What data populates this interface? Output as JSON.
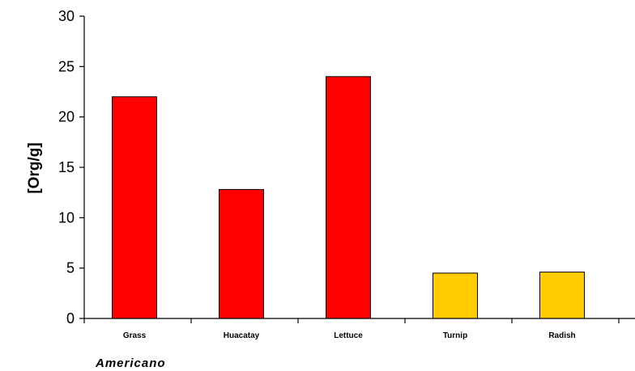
{
  "chart_data": {
    "type": "bar",
    "categories": [
      "Grass",
      "Huacatay",
      "Lettuce",
      "Turnip",
      "Radish"
    ],
    "values": [
      22,
      12.8,
      24,
      4.5,
      4.6
    ],
    "colors": [
      "#ff0000",
      "#ff0000",
      "#ff0000",
      "#ffcc00",
      "#ffcc00"
    ],
    "ylabel": "[Org/g]",
    "ylim": [
      0,
      30
    ],
    "yticks": [
      0,
      5,
      10,
      15,
      20,
      25,
      30
    ],
    "grid": false,
    "legend": "none"
  },
  "footnote": "Americano"
}
